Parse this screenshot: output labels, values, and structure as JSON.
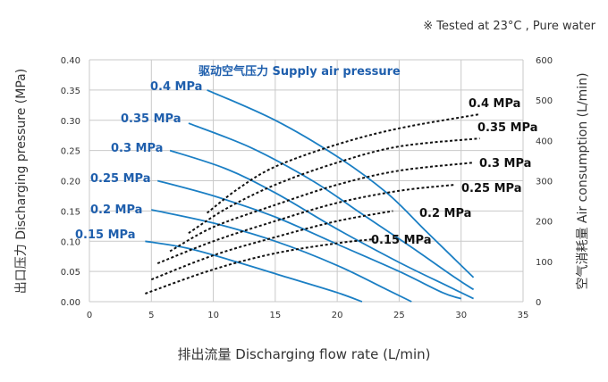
{
  "note": "※ Tested at 23°C , Pure water",
  "chart_data": {
    "type": "line",
    "xlabel": "排出流量 Discharging flow rate (L/min)",
    "ylabel_left": "出口压力 Discharging pressure (MPa)",
    "ylabel_right": "空气消耗量 Air consumption (L/min)",
    "legend_title": "驱动空气压力 Supply air pressure",
    "x_ticks": [
      "0",
      "5",
      "10",
      "15",
      "20",
      "25",
      "30",
      "35"
    ],
    "y_left_ticks": [
      "0.00",
      "0.05",
      "0.10",
      "0.15",
      "0.20",
      "0.25",
      "0.30",
      "0.35",
      "0.40"
    ],
    "y_right_ticks": [
      "0",
      "100",
      "200",
      "300",
      "400",
      "500",
      "600"
    ],
    "xlim": [
      0,
      35
    ],
    "ylim_left": [
      0,
      0.4
    ],
    "ylim_right": [
      0,
      600
    ],
    "grid": true,
    "pressure_series": [
      {
        "name": "0.4 MPa",
        "x": [
          9.5,
          15,
          20,
          24,
          27,
          29.5,
          31
        ],
        "y": [
          0.35,
          0.3,
          0.24,
          0.18,
          0.12,
          0.07,
          0.04
        ]
      },
      {
        "name": "0.35 MPa",
        "x": [
          8,
          13,
          18,
          22,
          26,
          29.5,
          31
        ],
        "y": [
          0.295,
          0.255,
          0.2,
          0.145,
          0.09,
          0.04,
          0.02
        ]
      },
      {
        "name": "0.3 MPa",
        "x": [
          6.5,
          11,
          15,
          20,
          25,
          29,
          31
        ],
        "y": [
          0.25,
          0.22,
          0.18,
          0.12,
          0.065,
          0.025,
          0.005
        ]
      },
      {
        "name": "0.25 MPa",
        "x": [
          5.5,
          10,
          15,
          20,
          25,
          28.5,
          30
        ],
        "y": [
          0.2,
          0.175,
          0.14,
          0.095,
          0.05,
          0.015,
          0.005
        ]
      },
      {
        "name": "0.2 MPa",
        "x": [
          5,
          10,
          15,
          20,
          24,
          26
        ],
        "y": [
          0.152,
          0.13,
          0.1,
          0.06,
          0.02,
          0.0
        ]
      },
      {
        "name": "0.15 MPa",
        "x": [
          4.5,
          8,
          12,
          16,
          20,
          22
        ],
        "y": [
          0.1,
          0.088,
          0.065,
          0.04,
          0.015,
          0.0
        ]
      }
    ],
    "air_series": [
      {
        "name": "0.4 MPa",
        "x": [
          9.5,
          12,
          15,
          20,
          25,
          31.5
        ],
        "y": [
          220,
          280,
          335,
          390,
          430,
          465
        ]
      },
      {
        "name": "0.35 MPa",
        "x": [
          8,
          11,
          15,
          20,
          25,
          31.5
        ],
        "y": [
          170,
          230,
          290,
          345,
          385,
          405
        ]
      },
      {
        "name": "0.3 MPa",
        "x": [
          6.5,
          10,
          15,
          20,
          25,
          31
        ],
        "y": [
          125,
          185,
          240,
          290,
          325,
          345
        ]
      },
      {
        "name": "0.25 MPa",
        "x": [
          5.5,
          10,
          15,
          20,
          25,
          29.5
        ],
        "y": [
          95,
          150,
          200,
          245,
          275,
          290
        ]
      },
      {
        "name": "0.2 MPa",
        "x": [
          5,
          10,
          15,
          20,
          24.5
        ],
        "y": [
          55,
          115,
          160,
          200,
          225
        ]
      },
      {
        "name": "0.15 MPa",
        "x": [
          4.5,
          10,
          15,
          20,
          23
        ],
        "y": [
          20,
          80,
          120,
          145,
          155
        ]
      }
    ],
    "pressure_labels": [
      "0.4 MPa",
      "0.35 MPa",
      "0.3 MPa",
      "0.25 MPa",
      "0.2 MPa",
      "0.15 MPa"
    ],
    "air_labels": [
      "0.4 MPa",
      "0.35 MPa",
      "0.3 MPa",
      "0.25 MPa",
      "0.2 MPa",
      "0.15 MPa"
    ]
  },
  "colors": {
    "pressure_line": "#1b7fc4",
    "air_line": "#111111",
    "label_blue": "#1f5fad",
    "grid": "#c9c9c9",
    "text": "#333333"
  }
}
